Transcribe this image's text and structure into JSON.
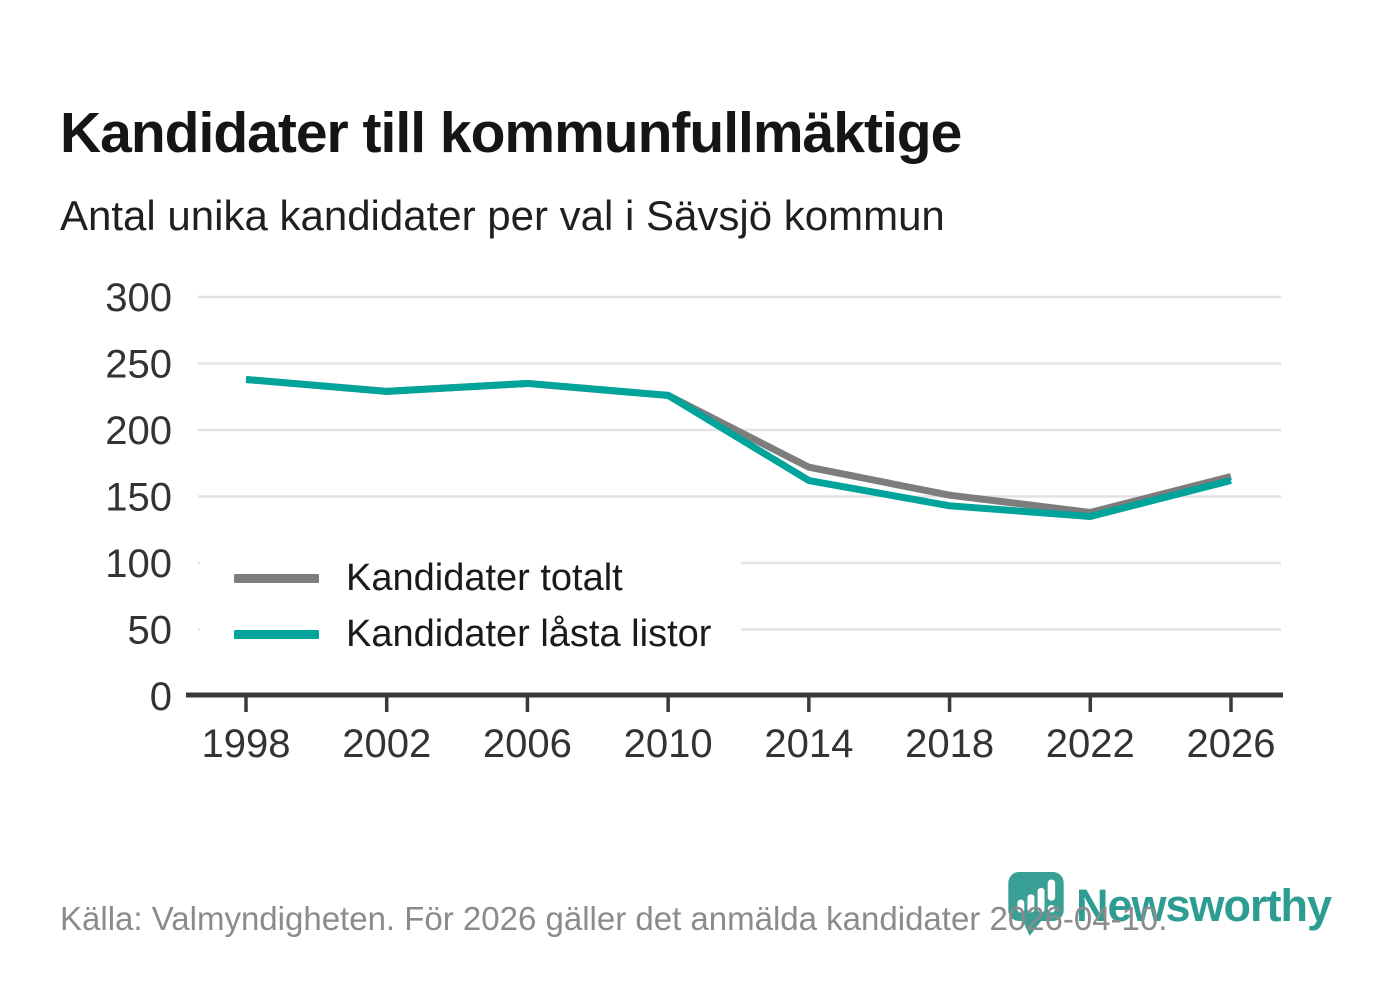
{
  "header": {
    "title": "Kandidater till kommunfullmäktige",
    "subtitle": "Antal unika kandidater per val i Sävsjö kommun"
  },
  "chart_data": {
    "type": "line",
    "title": "Kandidater till kommunfullmäktige",
    "subtitle": "Antal unika kandidater per val i Sävsjö kommun",
    "categories": [
      "1998",
      "2002",
      "2006",
      "2010",
      "2014",
      "2018",
      "2022",
      "2026"
    ],
    "series": [
      {
        "name": "Kandidater totalt",
        "color": "#7d7d7d",
        "values": [
          238,
          229,
          235,
          226,
          172,
          151,
          138,
          165
        ]
      },
      {
        "name": "Kandidater låsta listor",
        "color": "#00a49b",
        "values": [
          238,
          229,
          235,
          226,
          162,
          143,
          135,
          162
        ]
      }
    ],
    "xlabel": "",
    "ylabel": "",
    "ylim": [
      0,
      300
    ],
    "y_ticks": [
      0,
      50,
      100,
      150,
      200,
      250,
      300
    ],
    "grid": true,
    "legend_position": "inside-bottom-left"
  },
  "footer": {
    "source": "Källa: Valmyndigheten. För 2026 gäller det anmälda kandidater 2026-04-10.",
    "brand": "Newsworthy"
  },
  "colors": {
    "accent_teal": "#00a49b",
    "series_gray": "#7d7d7d",
    "brand_teal": "#3aa096",
    "grid": "#e3e3e3",
    "axis": "#3a3a3a",
    "tick_text": "#333333",
    "text_dark": "#1a1a1a",
    "text_muted": "#8b8b8b"
  }
}
